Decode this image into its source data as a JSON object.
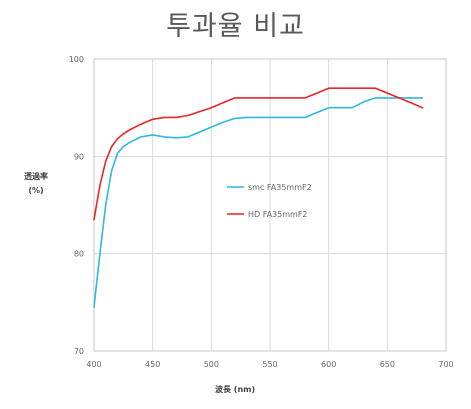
{
  "title": "투과율 비교",
  "chart_data": {
    "type": "line",
    "title": "투과율 비교",
    "xlabel": "波長 (nm)",
    "ylabel_line1": "透過率",
    "ylabel_line2": "(%)",
    "xlim": [
      400,
      700
    ],
    "ylim": [
      70,
      100
    ],
    "xticks": [
      400,
      450,
      500,
      550,
      600,
      650,
      700
    ],
    "yticks": [
      70,
      80,
      90,
      100
    ],
    "grid": true,
    "legend_position": "center",
    "series": [
      {
        "name": "smc FA35mmF2",
        "color": "#2fb8e0",
        "x": [
          400,
          405,
          410,
          415,
          420,
          425,
          430,
          440,
          450,
          460,
          470,
          480,
          490,
          500,
          510,
          520,
          530,
          540,
          550,
          560,
          570,
          580,
          590,
          600,
          610,
          620,
          630,
          640,
          650,
          660,
          670,
          680
        ],
        "y": [
          74.5,
          80,
          85,
          88.5,
          90.3,
          91,
          91.4,
          92,
          92.2,
          92,
          91.9,
          92,
          92.5,
          93,
          93.5,
          93.9,
          94,
          94,
          94,
          94,
          94,
          94,
          94.5,
          95,
          95,
          95,
          95.6,
          96,
          96,
          96,
          96,
          96
        ]
      },
      {
        "name": "HD FA35mmF2",
        "color": "#e8262a",
        "x": [
          400,
          405,
          410,
          415,
          420,
          425,
          430,
          440,
          450,
          460,
          470,
          480,
          490,
          500,
          510,
          520,
          530,
          540,
          550,
          560,
          570,
          580,
          590,
          600,
          610,
          620,
          630,
          640,
          650,
          660,
          670,
          680
        ],
        "y": [
          83.5,
          87,
          89.5,
          91,
          91.8,
          92.3,
          92.7,
          93.3,
          93.8,
          94,
          94,
          94.2,
          94.6,
          95,
          95.5,
          96,
          96,
          96,
          96,
          96,
          96,
          96,
          96.5,
          97,
          97,
          97,
          97,
          97,
          96.5,
          96,
          95.5,
          95
        ]
      }
    ]
  }
}
